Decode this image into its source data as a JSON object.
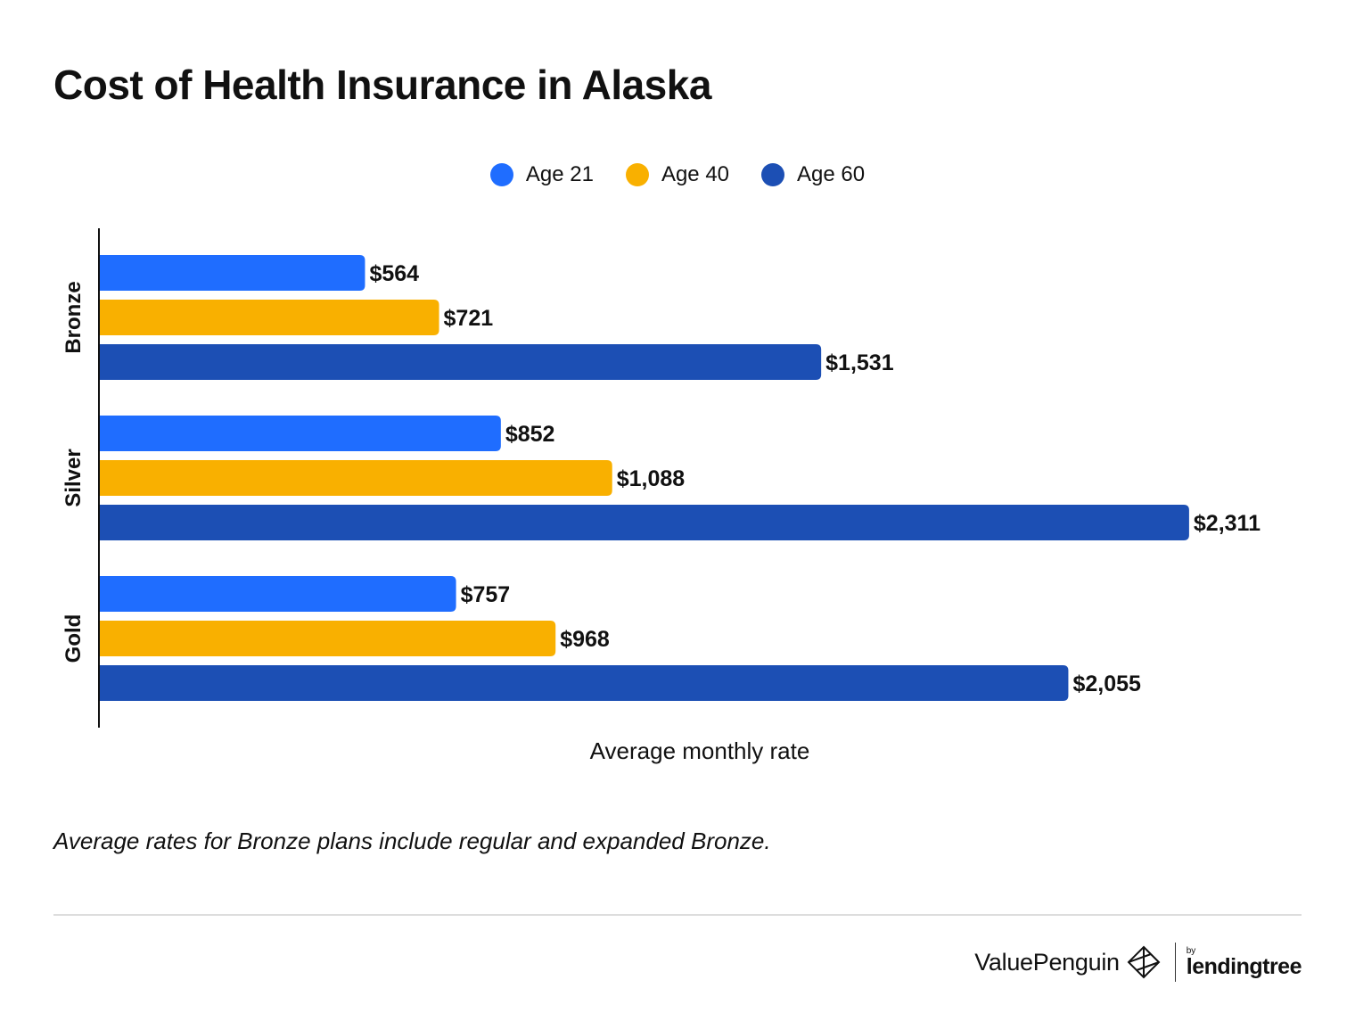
{
  "title": "Cost of Health Insurance in Alaska",
  "note": "Average rates for Bronze plans include regular and expanded Bronze.",
  "brand": {
    "name": "ValuePenguin",
    "by": "by",
    "partner": "lendingtree"
  },
  "colors": {
    "age21": "#1f6dff",
    "age40": "#f9b000",
    "age60": "#1c4fb4"
  },
  "chart_data": {
    "type": "bar",
    "orientation": "horizontal",
    "title": "Cost of Health Insurance in Alaska",
    "xlabel": "Average monthly rate",
    "ylabel": "",
    "categories": [
      "Bronze",
      "Silver",
      "Gold"
    ],
    "xlim": [
      0,
      2400
    ],
    "legend_position": "top-center",
    "grid": false,
    "series": [
      {
        "name": "Age 21",
        "color": "#1f6dff",
        "values": [
          564,
          852,
          757
        ],
        "labels": [
          "$564",
          "$852",
          "$757"
        ]
      },
      {
        "name": "Age 40",
        "color": "#f9b000",
        "values": [
          721,
          1088,
          968
        ],
        "labels": [
          "$721",
          "$1,088",
          "$968"
        ]
      },
      {
        "name": "Age 60",
        "color": "#1c4fb4",
        "values": [
          1531,
          2311,
          2055
        ],
        "labels": [
          "$1,531",
          "$2,311",
          "$2,055"
        ]
      }
    ]
  }
}
